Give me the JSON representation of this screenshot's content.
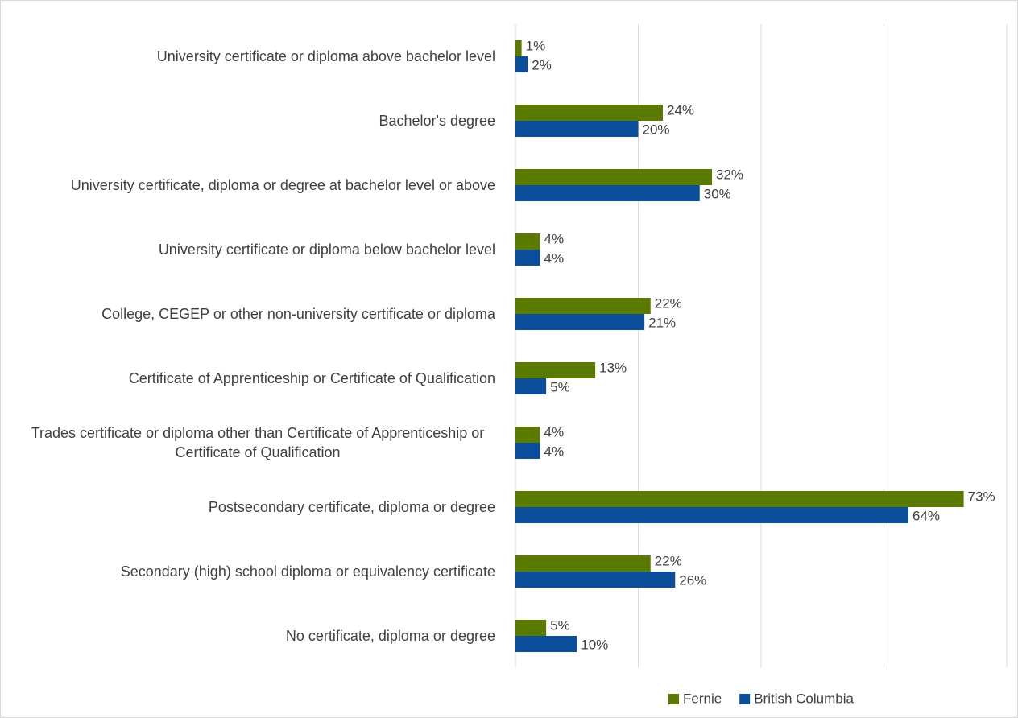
{
  "chart_data": {
    "type": "bar",
    "orientation": "horizontal",
    "categories": [
      "University certificate or diploma above bachelor level",
      "Bachelor's degree",
      "University certificate, diploma or degree at bachelor level or above",
      "University certificate or diploma below bachelor level",
      "College, CEGEP or other non-university certificate or diploma",
      "Certificate of Apprenticeship or Certificate of Qualification",
      "Trades certificate or diploma other than Certificate of Apprenticeship or Certificate of Qualification",
      "Postsecondary certificate, diploma or degree",
      "Secondary (high) school diploma or equivalency certificate",
      "No certificate, diploma or degree"
    ],
    "series": [
      {
        "name": "Fernie",
        "color": "#5a7a00",
        "values": [
          1,
          24,
          32,
          4,
          22,
          13,
          4,
          73,
          22,
          5
        ],
        "value_labels": [
          "1%",
          "24%",
          "32%",
          "4%",
          "22%",
          "13%",
          "4%",
          "73%",
          "22%",
          "5%"
        ]
      },
      {
        "name": "British Columbia",
        "color": "#0b4f9c",
        "values": [
          2,
          20,
          30,
          4,
          21,
          5,
          4,
          64,
          26,
          10
        ],
        "value_labels": [
          "2%",
          "20%",
          "30%",
          "4%",
          "21%",
          "5%",
          "4%",
          "64%",
          "26%",
          "10%"
        ]
      }
    ],
    "xlim": [
      0,
      80
    ],
    "xticks": [
      0,
      20,
      40,
      60,
      80
    ],
    "grid": true,
    "legend": "bottom"
  }
}
